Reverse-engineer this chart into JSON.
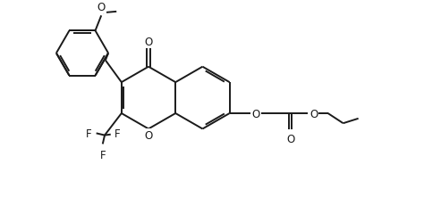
{
  "bg_color": "#ffffff",
  "line_color": "#1a1a1a",
  "line_width": 1.4,
  "font_size": 8.5,
  "fig_width": 4.93,
  "fig_height": 2.32,
  "dpi": 100,
  "xlim": [
    0.0,
    10.0
  ],
  "ylim": [
    0.0,
    5.0
  ]
}
